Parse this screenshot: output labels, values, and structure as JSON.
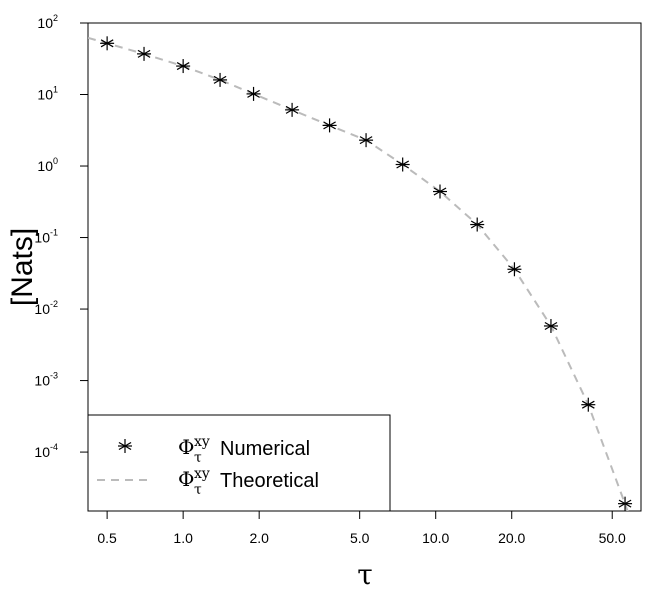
{
  "chart_data": {
    "type": "scatter",
    "xlabel": "τ",
    "ylabel": "[Nats]",
    "x_scale": "log",
    "y_scale": "log",
    "xlim": [
      0.42,
      65
    ],
    "ylim": [
      1.5e-05,
      100
    ],
    "x_ticks": [
      0.5,
      1.0,
      2.0,
      5.0,
      10.0,
      20.0,
      50.0
    ],
    "x_tick_labels": [
      "0.5",
      "1.0",
      "2.0",
      "5.0",
      "10.0",
      "20.0",
      "50.0"
    ],
    "y_ticks": [
      0.0001,
      0.001,
      0.01,
      0.1,
      1,
      10,
      100
    ],
    "y_tick_labels": [
      {
        "base": "10",
        "exp": "-4"
      },
      {
        "base": "10",
        "exp": "-3"
      },
      {
        "base": "10",
        "exp": "-2"
      },
      {
        "base": "10",
        "exp": "-1"
      },
      {
        "base": "10",
        "exp": "0"
      },
      {
        "base": "10",
        "exp": "1"
      },
      {
        "base": "10",
        "exp": "2"
      }
    ],
    "series": [
      {
        "name": "Φτxy Numerical",
        "style": "asterisk",
        "color": "#000000",
        "x": [
          0.5,
          0.7,
          1.0,
          1.4,
          1.9,
          2.7,
          3.8,
          5.3,
          7.4,
          10.4,
          14.6,
          20.5,
          28.6,
          40.2,
          56.2
        ],
        "y": [
          52,
          37,
          25,
          16,
          10.2,
          6.1,
          3.7,
          2.3,
          1.05,
          0.44,
          0.152,
          0.036,
          0.0058,
          0.00046,
          1.9e-05
        ]
      },
      {
        "name": "Φτxy Theoretical",
        "style": "dashed",
        "color": "#bbbbbb",
        "x": [
          0.42,
          0.5,
          0.7,
          1.0,
          1.4,
          1.9,
          2.7,
          3.8,
          5.3,
          7.4,
          10.4,
          14.6,
          20.5,
          28.6,
          40.2,
          56.2,
          62
        ],
        "y": [
          62,
          52,
          37,
          25,
          16,
          10.2,
          6.1,
          3.7,
          2.3,
          1.05,
          0.44,
          0.152,
          0.036,
          0.0058,
          0.00046,
          1.9e-05,
          7e-06
        ]
      }
    ],
    "legend": {
      "position": "bottom-left",
      "entries": [
        {
          "symbol": "Φ",
          "sub": "τ",
          "sup": "xy",
          "label": "Numerical"
        },
        {
          "symbol": "Φ",
          "sub": "τ",
          "sup": "xy",
          "label": "Theoretical"
        }
      ]
    }
  }
}
